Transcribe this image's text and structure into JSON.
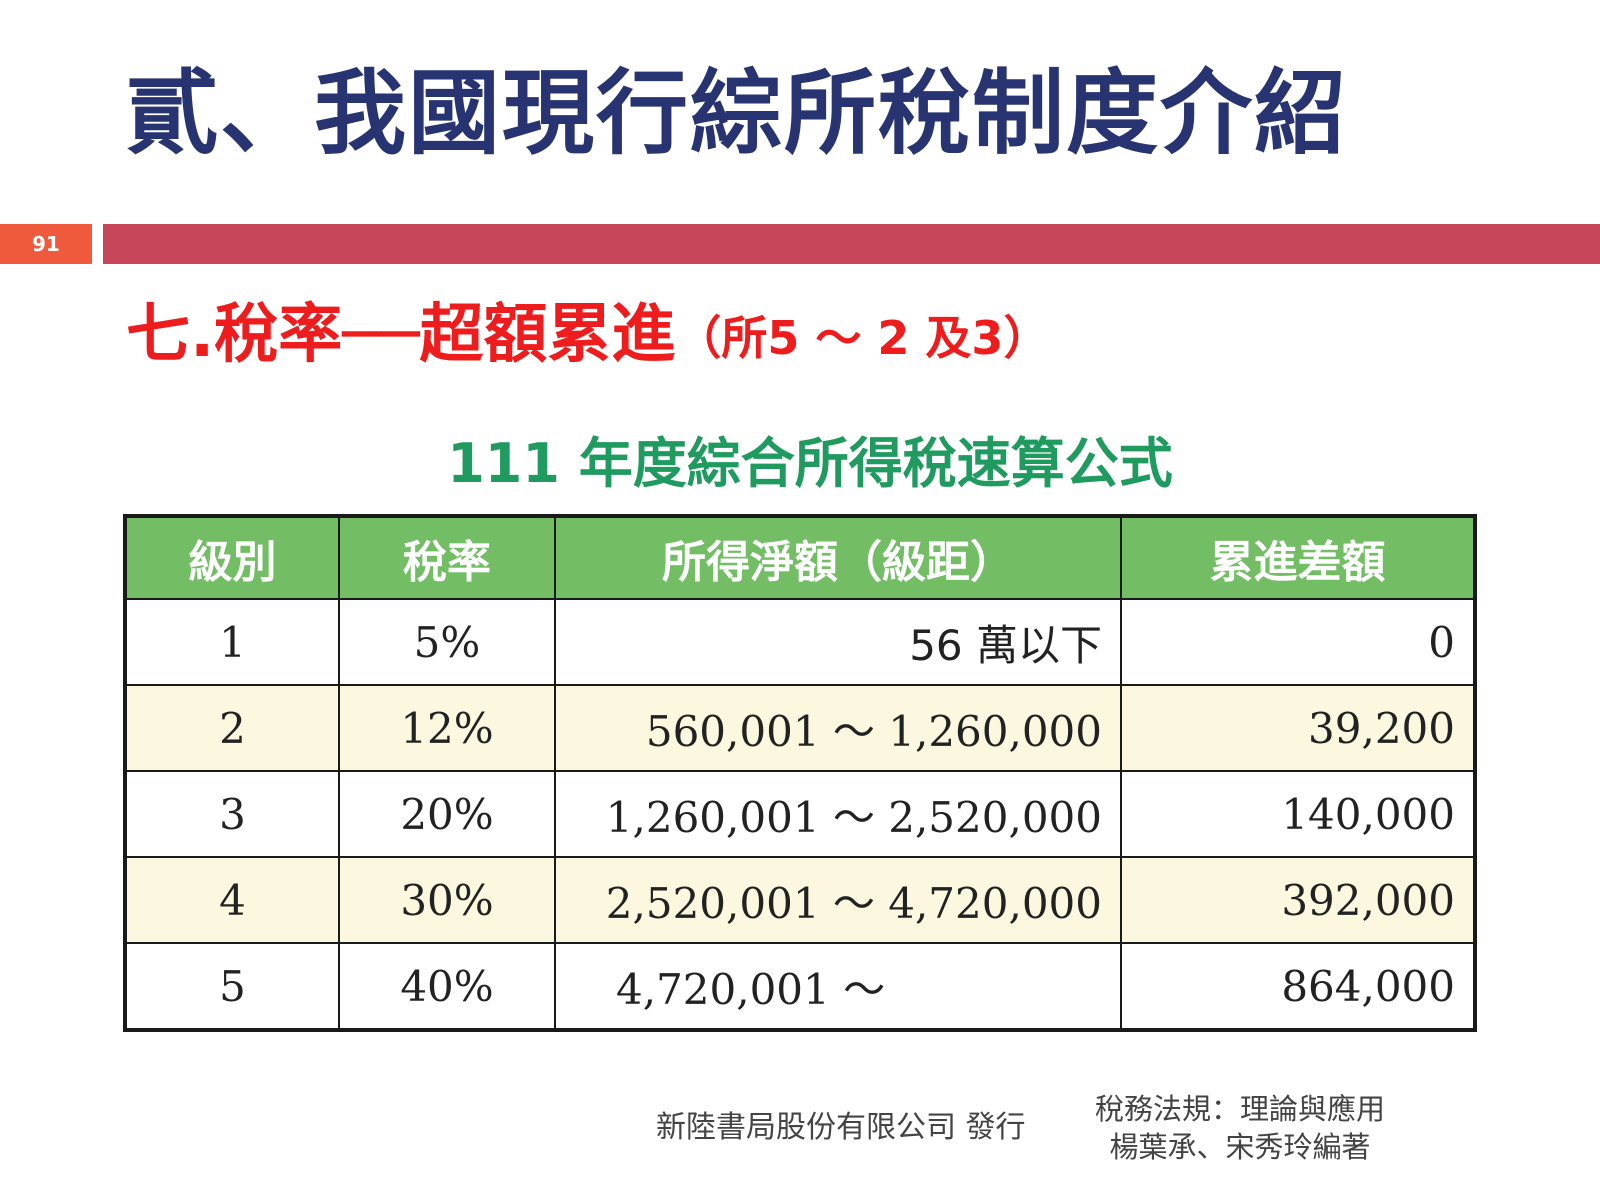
{
  "slide": {
    "title": "貳、我國現行綜所稅制度介紹",
    "page_number": "91",
    "section_heading": "七.稅率──超額累進",
    "section_reference": "（所5 ～ 2 及3）"
  },
  "table": {
    "title": "111 年度綜合所得稅速算公式",
    "headers": [
      "級別",
      "稅率",
      "所得淨額（級距）",
      "累進差額"
    ],
    "rows": [
      {
        "level": "1",
        "rate": "5%",
        "range": "56 萬以下",
        "diff": "0"
      },
      {
        "level": "2",
        "rate": "12%",
        "range": "560,001 ～ 1,260,000",
        "diff": "39,200"
      },
      {
        "level": "3",
        "rate": "20%",
        "range": "1,260,001 ～ 2,520,000",
        "diff": "140,000"
      },
      {
        "level": "4",
        "rate": "30%",
        "range": "2,520,001 ～ 4,720,000",
        "diff": "392,000"
      },
      {
        "level": "5",
        "rate": "40%",
        "range": "4,720,001 ～",
        "diff": "864,000"
      }
    ]
  },
  "footer": {
    "publisher": "新陸書局股份有限公司 發行",
    "book_title": "稅務法規：理論與應用",
    "authors": "楊葉承、宋秀玲編著"
  },
  "colors": {
    "title": "#283471",
    "heading": "#ee1c1c",
    "bar": "#c8465a",
    "badge": "#f05a3c",
    "table_title": "#1f9b60",
    "table_header": "#73bd65",
    "alt_row": "#fcf8df"
  }
}
